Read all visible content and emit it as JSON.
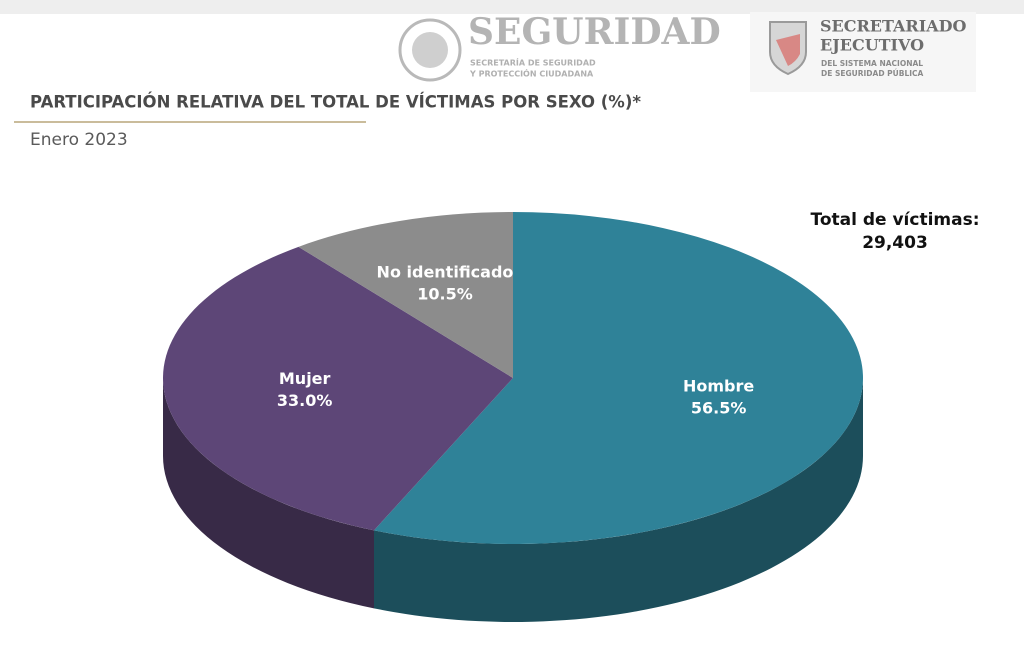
{
  "header": {
    "logo1_title": "SEGURIDAD",
    "logo1_sub1": "SECRETARÍA DE SEGURIDAD",
    "logo1_sub2": "Y PROTECCIÓN CIUDADANA",
    "logo2_title1": "SECRETARIADO",
    "logo2_title2": "EJECUTIVO",
    "logo2_sub1": "DEL SISTEMA NACIONAL",
    "logo2_sub2": "DE SEGURIDAD PÚBLICA"
  },
  "chart_data": {
    "type": "pie",
    "title": "PARTICIPACIÓN RELATIVA DEL TOTAL DE VÍCTIMAS POR SEXO (%)*",
    "subtitle": "Enero 2023",
    "annotations": [
      "Total de víctimas:",
      "29,403"
    ],
    "categories": [
      "Hombre",
      "Mujer",
      "No identificado"
    ],
    "values": [
      56.5,
      33.0,
      10.5
    ],
    "value_labels": [
      "56.5%",
      "33.0%",
      "10.5%"
    ],
    "colors": [
      "#2f8298",
      "#5d4677",
      "#8c8c8c"
    ]
  }
}
